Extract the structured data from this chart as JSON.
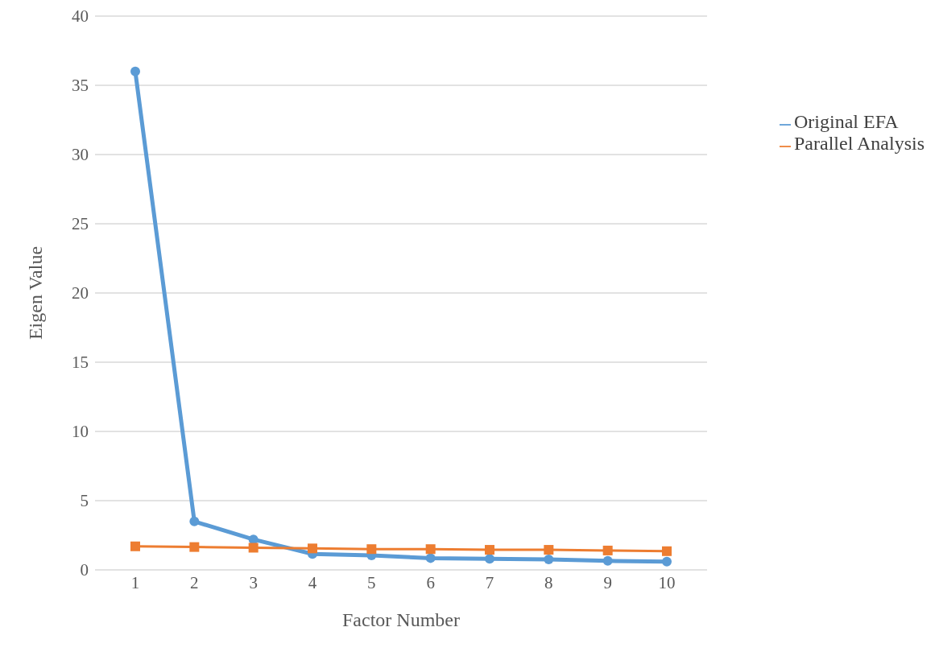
{
  "chart_data": {
    "type": "line",
    "xlabel": "Factor Number",
    "ylabel": "Eigen Value",
    "categories": [
      "1",
      "2",
      "3",
      "4",
      "5",
      "6",
      "7",
      "8",
      "9",
      "10"
    ],
    "series": [
      {
        "name": "Original EFA",
        "color": "#5b9bd5",
        "values": [
          36,
          3.5,
          2.2,
          1.15,
          1.05,
          0.85,
          0.8,
          0.75,
          0.65,
          0.6
        ]
      },
      {
        "name": "Parallel Analysis",
        "color": "#ed7d31",
        "marker": "square",
        "values": [
          1.7,
          1.65,
          1.6,
          1.55,
          1.5,
          1.5,
          1.45,
          1.45,
          1.4,
          1.35
        ]
      }
    ],
    "marker": "circle",
    "ylim": [
      0,
      40
    ],
    "yticks": [
      0,
      5,
      10,
      15,
      20,
      25,
      30,
      35,
      40
    ],
    "grid": "y",
    "legend": "top right"
  }
}
